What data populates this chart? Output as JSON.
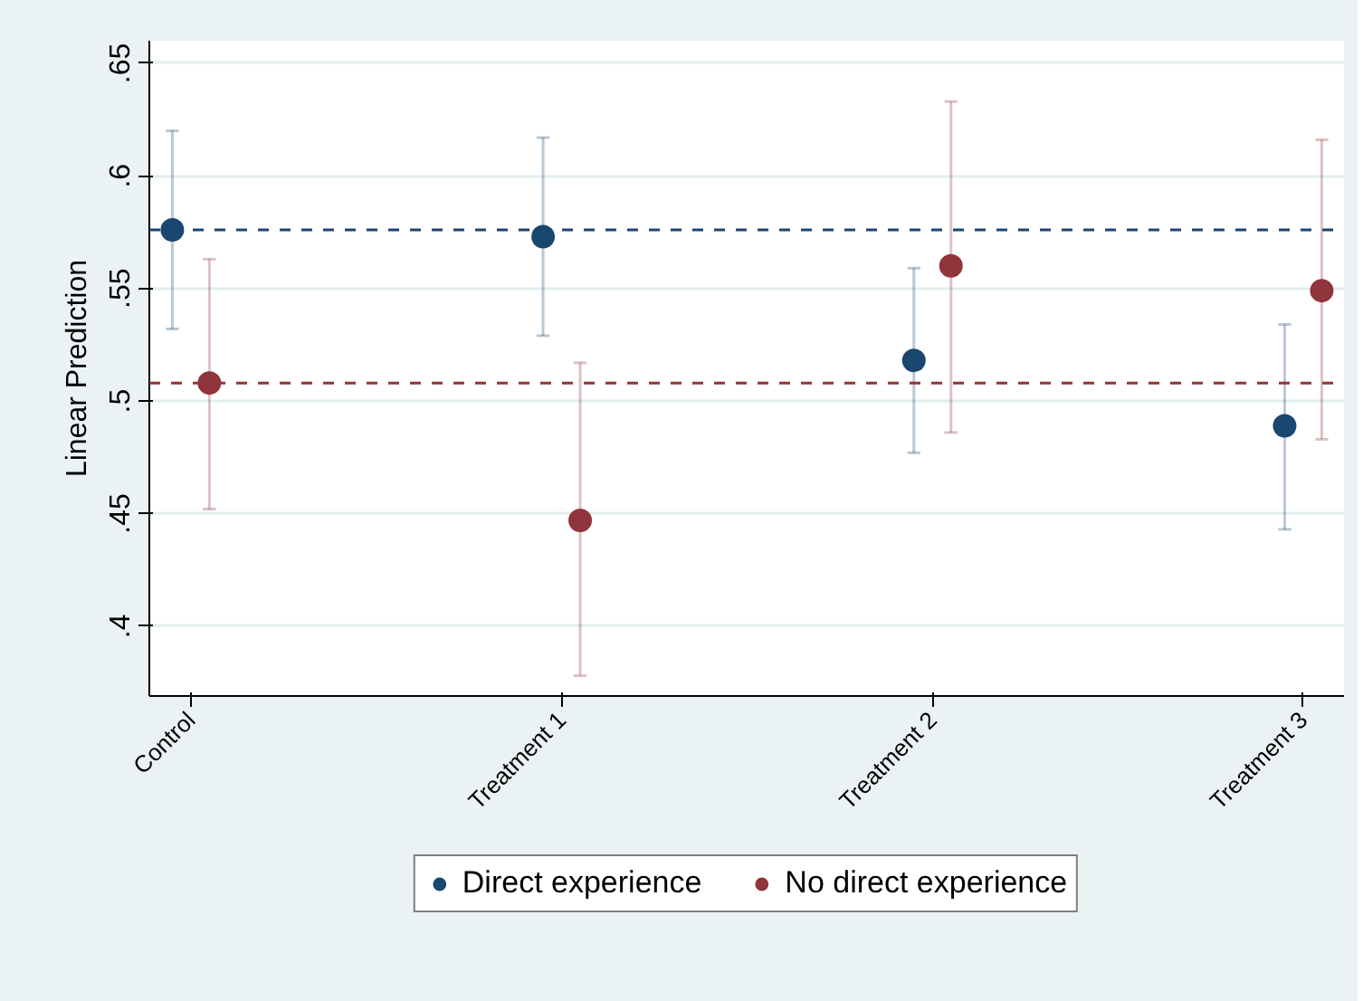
{
  "chart_data": {
    "type": "scatter",
    "ylabel": "Linear Prediction",
    "categories": [
      "Control",
      "Treatment 1",
      "Treatment 2",
      "Treatment 3"
    ],
    "series": [
      {
        "name": "Direct experience",
        "color": "#1a476f",
        "values": [
          0.576,
          0.573,
          0.518,
          0.489
        ],
        "errors": [
          [
            0.532,
            0.62
          ],
          [
            0.529,
            0.617
          ],
          [
            0.477,
            0.559
          ],
          [
            0.443,
            0.534
          ]
        ]
      },
      {
        "name": "No direct experience",
        "color": "#90353b",
        "values": [
          0.508,
          0.447,
          0.56,
          0.549
        ],
        "errors": [
          [
            0.452,
            0.563
          ],
          [
            0.378,
            0.517
          ],
          [
            0.486,
            0.633
          ],
          [
            0.483,
            0.616
          ]
        ]
      }
    ],
    "ylim": [
      0.369,
      0.66
    ],
    "yticks": [
      {
        "value": 0.4,
        "label": ".4"
      },
      {
        "value": 0.45,
        "label": ".45"
      },
      {
        "value": 0.5,
        "label": ".5"
      },
      {
        "value": 0.55,
        "label": ".55"
      },
      {
        "value": 0.6,
        "label": ".6"
      },
      {
        "value": 0.65,
        "label": ".65"
      }
    ],
    "ref_lines": [
      {
        "axis": "y",
        "value": 0.576,
        "color": "#1a476f",
        "line_style": "dashed"
      },
      {
        "axis": "y",
        "value": 0.508,
        "color": "#90353b",
        "line_style": "dashed"
      }
    ],
    "grid": "y",
    "legend": "bottom",
    "marker": "circle"
  }
}
